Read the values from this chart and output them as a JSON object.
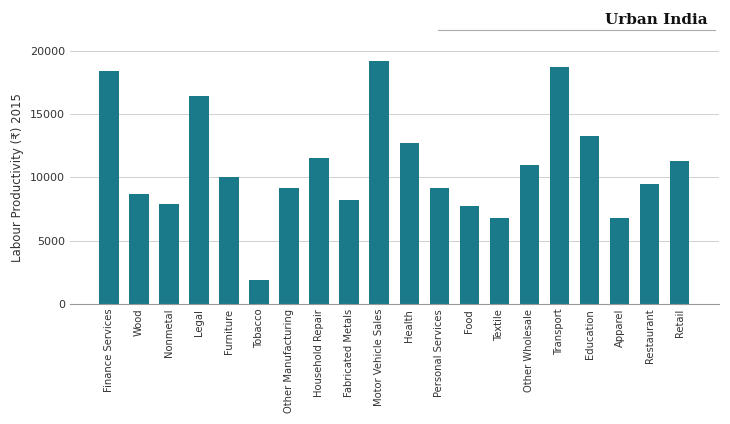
{
  "categories": [
    "Finance Services",
    "Wood",
    "Nonmetal",
    "Legal",
    "Furniture",
    "Tobacco",
    "Other Manufacturing",
    "Household Repair",
    "Fabricated Metals",
    "Motor Vehicle Sales",
    "Health",
    "Personal Services",
    "Food",
    "Textile",
    "Other Wholesale",
    "Transport",
    "Education",
    "Apparel",
    "Restaurant",
    "Retail"
  ],
  "values": [
    18400,
    8700,
    7900,
    16400,
    10000,
    1900,
    9200,
    11500,
    8200,
    19200,
    12700,
    9200,
    7700,
    6800,
    11000,
    18700,
    13300,
    6800,
    9500,
    11300
  ],
  "bar_color": "#1a7a8a",
  "ylabel": "Labour Productivity (₹) 2015",
  "title": "Urban India",
  "ylim": [
    0,
    20000
  ],
  "yticks": [
    0,
    5000,
    10000,
    15000,
    20000
  ],
  "background_color": "#ffffff",
  "grid_color": "#d0d0d0"
}
